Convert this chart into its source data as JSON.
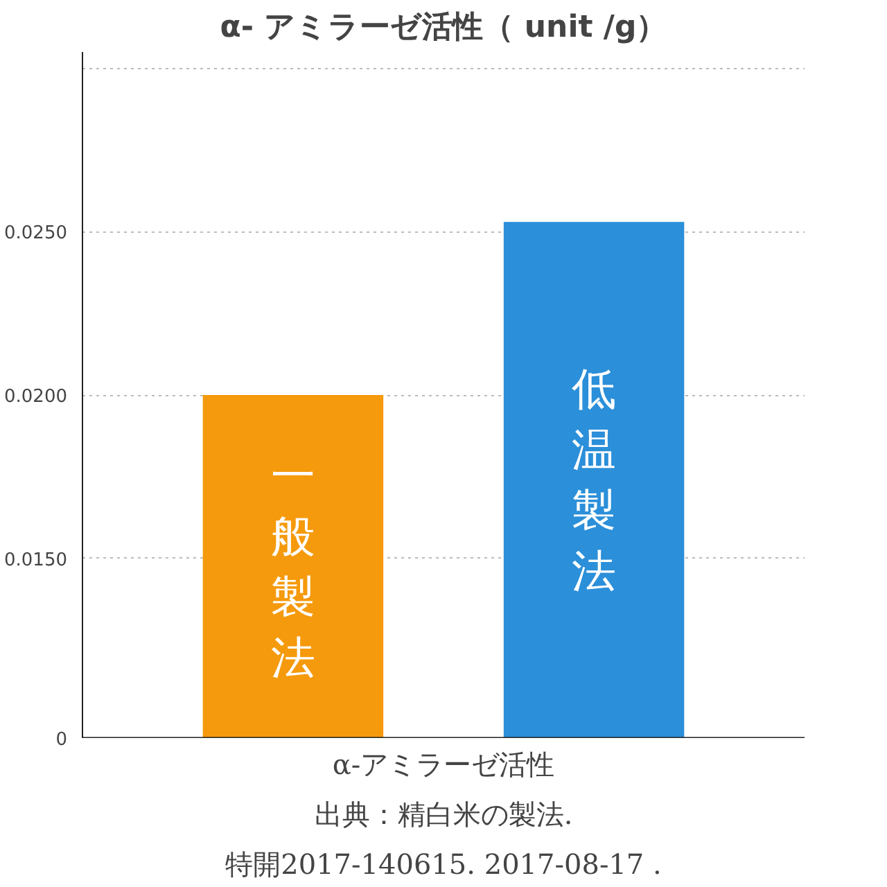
{
  "chart_data": {
    "type": "bar",
    "title": "α- アミラーゼ活性（ unit /g）",
    "categories": [
      "一般製法",
      "低温製法"
    ],
    "values": [
      0.02,
      0.0253
    ],
    "colors": [
      "#f59a0c",
      "#2b8fd9"
    ],
    "ylim": [
      0.0095,
      0.0305
    ],
    "yticks": [
      {
        "value": 0.0095,
        "label": "0"
      },
      {
        "value": 0.015,
        "label": "0.0150"
      },
      {
        "value": 0.02,
        "label": "0.0200"
      },
      {
        "value": 0.025,
        "label": "0.0250"
      },
      {
        "value": 0.03,
        "label": null
      }
    ],
    "grid": "y",
    "annotations": [
      "α-アミラーゼ活性",
      "出典：精白米の製法.",
      "特開2017-140615. 2017-08-17 ."
    ]
  }
}
